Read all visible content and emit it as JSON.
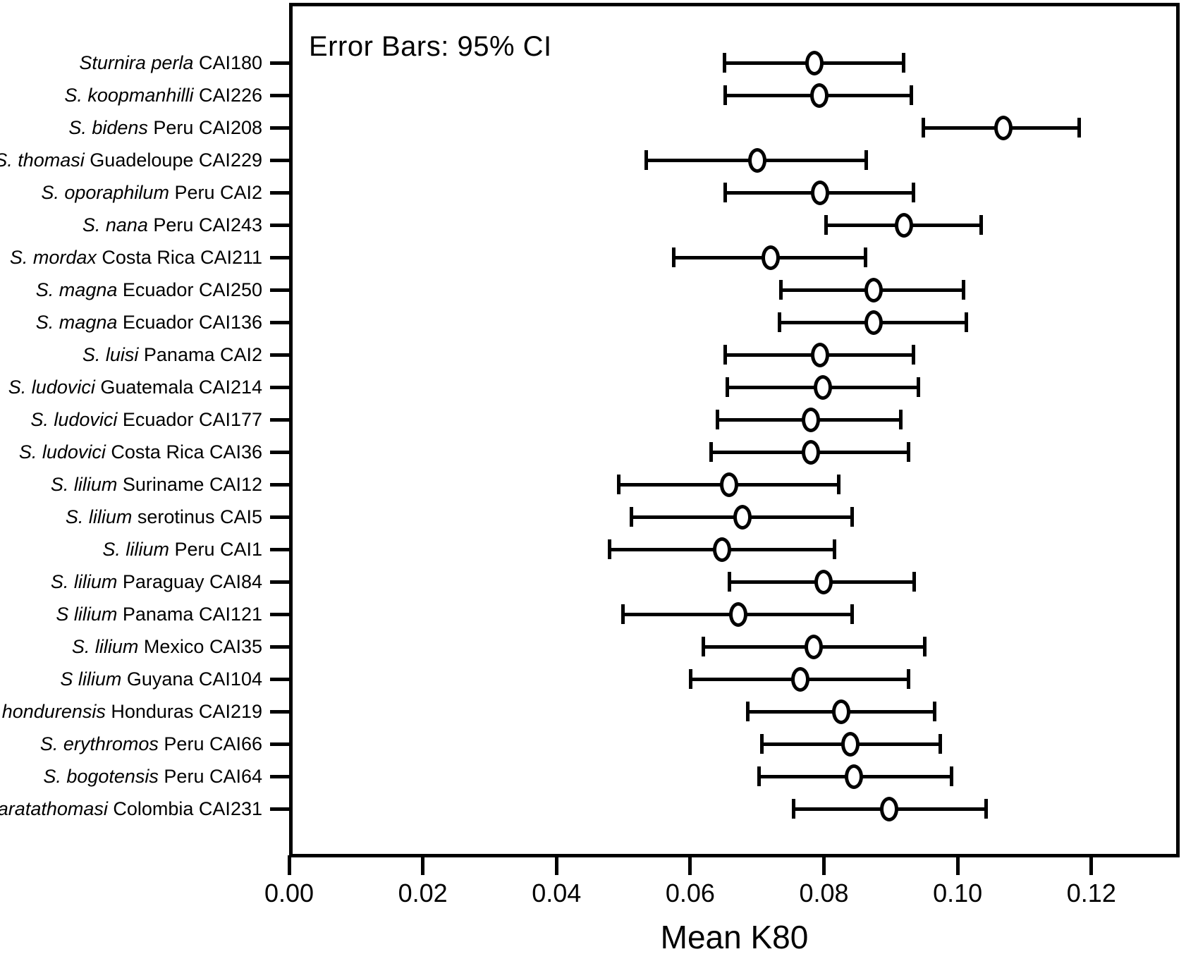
{
  "chart_data": {
    "type": "scatter",
    "subtype": "horizontal-error-bar-dot-plot",
    "title": "Error Bars: 95% CI",
    "xlabel": "Mean K80",
    "ylabel": "",
    "xlim": [
      0,
      0.1332
    ],
    "grid": false,
    "legend": "none",
    "marker": "open-circle",
    "error_bars": "95% CI",
    "x_ticks": [
      {
        "value": 0.0,
        "label": "0.00"
      },
      {
        "value": 0.02,
        "label": "0.02"
      },
      {
        "value": 0.04,
        "label": "0.04"
      },
      {
        "value": 0.06,
        "label": "0.06"
      },
      {
        "value": 0.08,
        "label": "0.08"
      },
      {
        "value": 0.1,
        "label": "0.10"
      },
      {
        "value": 0.12,
        "label": "0.12"
      }
    ],
    "points": [
      {
        "taxon": "Sturnira perla",
        "rest": "CAI180",
        "mean": 0.0786,
        "ci_low": 0.0651,
        "ci_high": 0.0922
      },
      {
        "taxon": "S. koopmanhilli",
        "rest": "CAI226",
        "mean": 0.0793,
        "ci_low": 0.0652,
        "ci_high": 0.0933
      },
      {
        "taxon": "S. bidens",
        "rest": "Peru CAI208",
        "mean": 0.1068,
        "ci_low": 0.0949,
        "ci_high": 0.1184
      },
      {
        "taxon": "S. thomasi",
        "rest": "Guadeloupe CAI229",
        "mean": 0.07,
        "ci_low": 0.0534,
        "ci_high": 0.0866
      },
      {
        "taxon": "S. oporaphilum",
        "rest": "Peru CAI2",
        "mean": 0.0794,
        "ci_low": 0.0652,
        "ci_high": 0.0936
      },
      {
        "taxon": "S. nana",
        "rest": "Peru CAI243",
        "mean": 0.092,
        "ci_low": 0.0803,
        "ci_high": 0.1038
      },
      {
        "taxon": "S. mordax",
        "rest": "Costa Rica CAI211",
        "mean": 0.072,
        "ci_low": 0.0575,
        "ci_high": 0.0865
      },
      {
        "taxon": "S. magna",
        "rest": "Ecuador CAI250",
        "mean": 0.0874,
        "ci_low": 0.0736,
        "ci_high": 0.1011
      },
      {
        "taxon": "S. magna",
        "rest": "Ecuador CAI136",
        "mean": 0.0874,
        "ci_low": 0.0733,
        "ci_high": 0.1016
      },
      {
        "taxon": "S. luisi",
        "rest": "Panama CAI2",
        "mean": 0.0794,
        "ci_low": 0.0652,
        "ci_high": 0.0936
      },
      {
        "taxon": "S. ludovici",
        "rest": "Guatemala CAI214",
        "mean": 0.0798,
        "ci_low": 0.0655,
        "ci_high": 0.0944
      },
      {
        "taxon": "S. ludovici",
        "rest": "Ecuador CAI177",
        "mean": 0.078,
        "ci_low": 0.0641,
        "ci_high": 0.0918
      },
      {
        "taxon": "S. ludovici",
        "rest": "Costa Rica CAI36",
        "mean": 0.078,
        "ci_low": 0.0631,
        "ci_high": 0.0929
      },
      {
        "taxon": "S. lilium",
        "rest": "Suriname CAI12",
        "mean": 0.0658,
        "ci_low": 0.0493,
        "ci_high": 0.0825
      },
      {
        "taxon": "S. lilium",
        "rest": "serotinus CAI5",
        "mean": 0.0678,
        "ci_low": 0.0512,
        "ci_high": 0.0845
      },
      {
        "taxon": "S. lilium",
        "rest": "Peru CAI1",
        "mean": 0.0648,
        "ci_low": 0.0479,
        "ci_high": 0.0818
      },
      {
        "taxon": "S. lilium",
        "rest": "Paraguay CAI84",
        "mean": 0.0799,
        "ci_low": 0.0659,
        "ci_high": 0.0938
      },
      {
        "taxon": "S lilium",
        "rest": "Panama CAI121",
        "mean": 0.0672,
        "ci_low": 0.0499,
        "ci_high": 0.0845
      },
      {
        "taxon": "S. lilium",
        "rest": "Mexico CAI35",
        "mean": 0.0785,
        "ci_low": 0.062,
        "ci_high": 0.0953
      },
      {
        "taxon": "S lilium",
        "rest": "Guyana CAI104",
        "mean": 0.0765,
        "ci_low": 0.0601,
        "ci_high": 0.0929
      },
      {
        "taxon": "S. hondurensis",
        "rest": "Honduras CAI219",
        "mean": 0.0826,
        "ci_low": 0.0686,
        "ci_high": 0.0968
      },
      {
        "taxon": "S. erythromos",
        "rest": "Peru CAI66",
        "mean": 0.084,
        "ci_low": 0.0707,
        "ci_high": 0.0977
      },
      {
        "taxon": "S. bogotensis",
        "rest": "Peru CAI64",
        "mean": 0.0845,
        "ci_low": 0.0703,
        "ci_high": 0.0993
      },
      {
        "taxon": "S. aratathomasi",
        "rest": "Colombia CAI231",
        "mean": 0.0897,
        "ci_low": 0.0755,
        "ci_high": 0.1045
      }
    ]
  }
}
